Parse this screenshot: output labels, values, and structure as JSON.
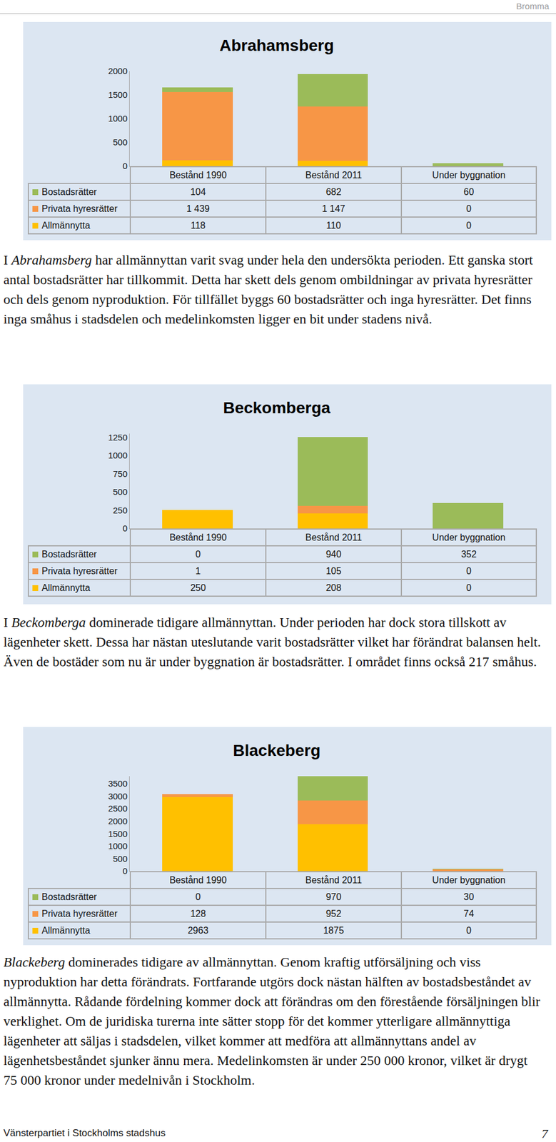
{
  "header": "Bromma",
  "chart_data": [
    {
      "type": "bar",
      "stacked": true,
      "grid": false,
      "title": "Abrahamsberg",
      "categories": [
        "Bestånd 1990",
        "Bestånd 2011",
        "Under byggnation"
      ],
      "series": [
        {
          "name": "Bostadsrätter",
          "color": "#9bbb59",
          "values": [
            104,
            682,
            60
          ]
        },
        {
          "name": "Privata hyresrätter",
          "color": "#f79646",
          "values": [
            1439,
            1147,
            0
          ],
          "value_labels": [
            "1 439",
            "1 147",
            "0"
          ]
        },
        {
          "name": "Allmännytta",
          "color": "#ffc000",
          "values": [
            118,
            110,
            0
          ]
        }
      ],
      "ylim": [
        0,
        2000
      ],
      "yticks": [
        0,
        500,
        1000,
        1500,
        2000
      ]
    },
    {
      "type": "bar",
      "stacked": true,
      "grid": false,
      "title": "Beckomberga",
      "categories": [
        "Bestånd 1990",
        "Bestånd 2011",
        "Under byggnation"
      ],
      "series": [
        {
          "name": "Bostadsrätter",
          "color": "#9bbb59",
          "values": [
            0,
            940,
            352
          ]
        },
        {
          "name": "Privata hyresrätter",
          "color": "#f79646",
          "values": [
            1,
            105,
            0
          ]
        },
        {
          "name": "Allmännytta",
          "color": "#ffc000",
          "values": [
            250,
            208,
            0
          ]
        }
      ],
      "ylim": [
        0,
        1300
      ],
      "yticks": [
        0,
        250,
        500,
        750,
        1000,
        1250
      ]
    },
    {
      "type": "bar",
      "stacked": true,
      "grid": false,
      "title": "Blackeberg",
      "categories": [
        "Bestånd 1990",
        "Bestånd 2011",
        "Under byggnation"
      ],
      "series": [
        {
          "name": "Bostadsrätter",
          "color": "#9bbb59",
          "values": [
            0,
            970,
            30
          ]
        },
        {
          "name": "Privata hyresrätter",
          "color": "#f79646",
          "values": [
            128,
            952,
            74
          ]
        },
        {
          "name": "Allmännytta",
          "color": "#ffc000",
          "values": [
            2963,
            1875,
            0
          ]
        }
      ],
      "ylim": [
        0,
        3800
      ],
      "yticks": [
        0,
        500,
        1000,
        1500,
        2000,
        2500,
        3000,
        3500
      ]
    }
  ],
  "paragraphs": [
    [
      {
        "text": "I "
      },
      {
        "text": "Abrahamsberg",
        "italic": true
      },
      {
        "text": " har allmännyttan varit svag under hela den undersökta perioden. Ett ganska stort antal bostadsrätter har tillkommit. Detta har skett dels genom ombildningar av privata hyresrätter och dels genom nyproduktion. För tillfället byggs 60 bostadsrätter och inga hyresrätter. Det finns inga småhus i stadsdelen och medelinkomsten ligger en bit under stadens nivå."
      }
    ],
    [
      {
        "text": "I "
      },
      {
        "text": "Beckomberga",
        "italic": true
      },
      {
        "text": " dominerade tidigare allmännyttan. Under perioden har dock stora tillskott av lägenheter skett. Dessa har nästan uteslutande varit bostadsrätter vilket har förändrat balansen helt. Även de bostäder som nu är under byggnation är bostadsrätter. I området finns också 217 småhus."
      }
    ],
    [
      {
        "text": "Blackeberg",
        "italic": true
      },
      {
        "text": " dominerades tidigare av allmännyttan. Genom kraftig utförsäljning och viss nyproduktion har detta förändrats. Fortfarande utgörs dock nästan hälften av bostadsbeståndet av allmännytta. Rådande fördelning kommer dock att förändras om den förestående försäljningen blir verklighet. Om de juridiska turerna inte sätter stopp för det kommer ytterligare allmännyttiga lägenheter att säljas i stadsdelen, vilket kommer att medföra att allmännyttans andel av lägenhetsbeståndet sjunker ännu mera. Medelinkomsten är under 250 000 kronor, vilket är drygt 75 000 kronor under medelnivån i Stockholm."
      }
    ]
  ],
  "footer": {
    "text": "Vänsterpartiet i Stockholms stadshus",
    "page_number": "7"
  }
}
